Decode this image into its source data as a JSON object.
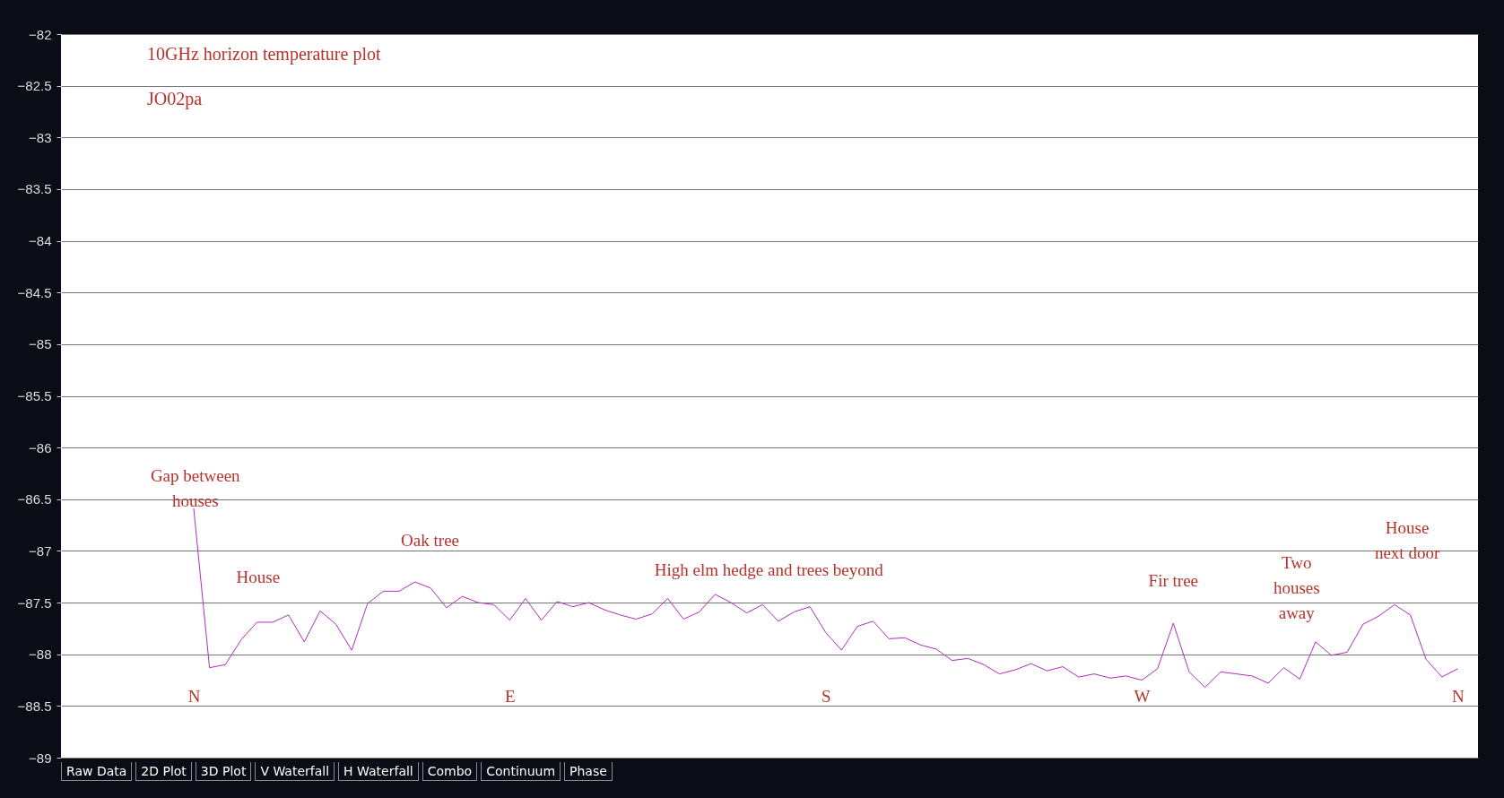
{
  "chart_data": {
    "type": "line",
    "title": "10GHz horizon temperature plot",
    "subtitle": "JO02pa",
    "categories": [
      "N",
      null,
      null,
      null,
      null,
      null,
      null,
      null,
      null,
      null,
      null,
      null,
      null,
      null,
      null,
      null,
      null,
      null,
      null,
      null,
      "E",
      null,
      null,
      null,
      null,
      null,
      null,
      null,
      null,
      null,
      null,
      null,
      null,
      null,
      null,
      null,
      null,
      null,
      null,
      null,
      "S",
      null,
      null,
      null,
      null,
      null,
      null,
      null,
      null,
      null,
      null,
      null,
      null,
      null,
      null,
      null,
      null,
      null,
      null,
      null,
      "W",
      null,
      null,
      null,
      null,
      null,
      null,
      null,
      null,
      null,
      null,
      null,
      null,
      null,
      null,
      null,
      null,
      null,
      null,
      null,
      "N"
    ],
    "series": [
      {
        "color": "#b02cc0",
        "values": [
          -86.59,
          -88.13,
          -88.1,
          -87.86,
          -87.69,
          -87.69,
          -87.62,
          -87.88,
          -87.58,
          -87.71,
          -87.96,
          -87.51,
          -87.39,
          -87.39,
          -87.3,
          -87.36,
          -87.55,
          -87.44,
          -87.5,
          -87.52,
          -87.67,
          -87.46,
          -87.67,
          -87.49,
          -87.54,
          -87.5,
          -87.57,
          -87.62,
          -87.66,
          -87.61,
          -87.46,
          -87.66,
          -87.59,
          -87.42,
          -87.5,
          -87.6,
          -87.52,
          -87.68,
          -87.59,
          -87.54,
          -87.79,
          -87.96,
          -87.73,
          -87.68,
          -87.85,
          -87.84,
          -87.91,
          -87.95,
          -88.06,
          -88.04,
          -88.1,
          -88.19,
          -88.15,
          -88.09,
          -88.16,
          -88.12,
          -88.22,
          -88.19,
          -88.23,
          -88.21,
          -88.25,
          -88.14,
          -87.7,
          -88.17,
          -88.32,
          -88.17,
          -88.19,
          -88.21,
          -88.28,
          -88.13,
          -88.24,
          -87.88,
          -88.01,
          -87.98,
          -87.71,
          -87.63,
          -87.52,
          -87.62,
          -88.05,
          -88.22,
          -88.14
        ]
      }
    ],
    "ylim": [
      -89,
      -82
    ],
    "yticks": [
      -82,
      -82.5,
      -83,
      -83.5,
      -84,
      -84.5,
      -85,
      -85.5,
      -86,
      -86.5,
      -87,
      -87.5,
      -88,
      -88.5,
      -89
    ],
    "grid": "y",
    "legend": false,
    "annotations": [
      "Gap between\nhouses",
      "House",
      "Oak tree",
      "High elm hedge and trees beyond",
      "Fir tree",
      "Two\nhouses\naway",
      "House\nnext door",
      "Raw Data",
      "2D Plot",
      "3D Plot",
      "V Waterfall",
      "H Waterfall",
      "Combo",
      "Continuum",
      "Phase"
    ]
  }
}
